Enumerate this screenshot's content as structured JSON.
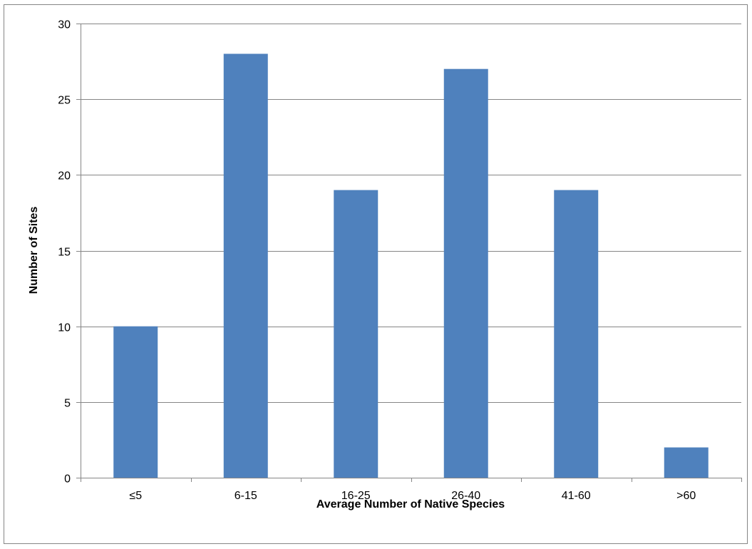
{
  "chart_data": {
    "type": "bar",
    "title": "",
    "xlabel": "Average Number of Native Species",
    "ylabel": "Number of Sites",
    "categories": [
      "≤5",
      "6-15",
      "16-25",
      "26-40",
      "41-60",
      ">60"
    ],
    "values": [
      10,
      28,
      19,
      27,
      19,
      2
    ],
    "ylim": [
      0,
      30
    ],
    "yticks": [
      "0",
      "5",
      "10",
      "15",
      "20",
      "25",
      "30"
    ],
    "grid": true,
    "legend": "none"
  },
  "colors": {
    "bar": "#4F81BD",
    "gridline": "#868686",
    "axis": "#868686",
    "frame": "#868686"
  }
}
